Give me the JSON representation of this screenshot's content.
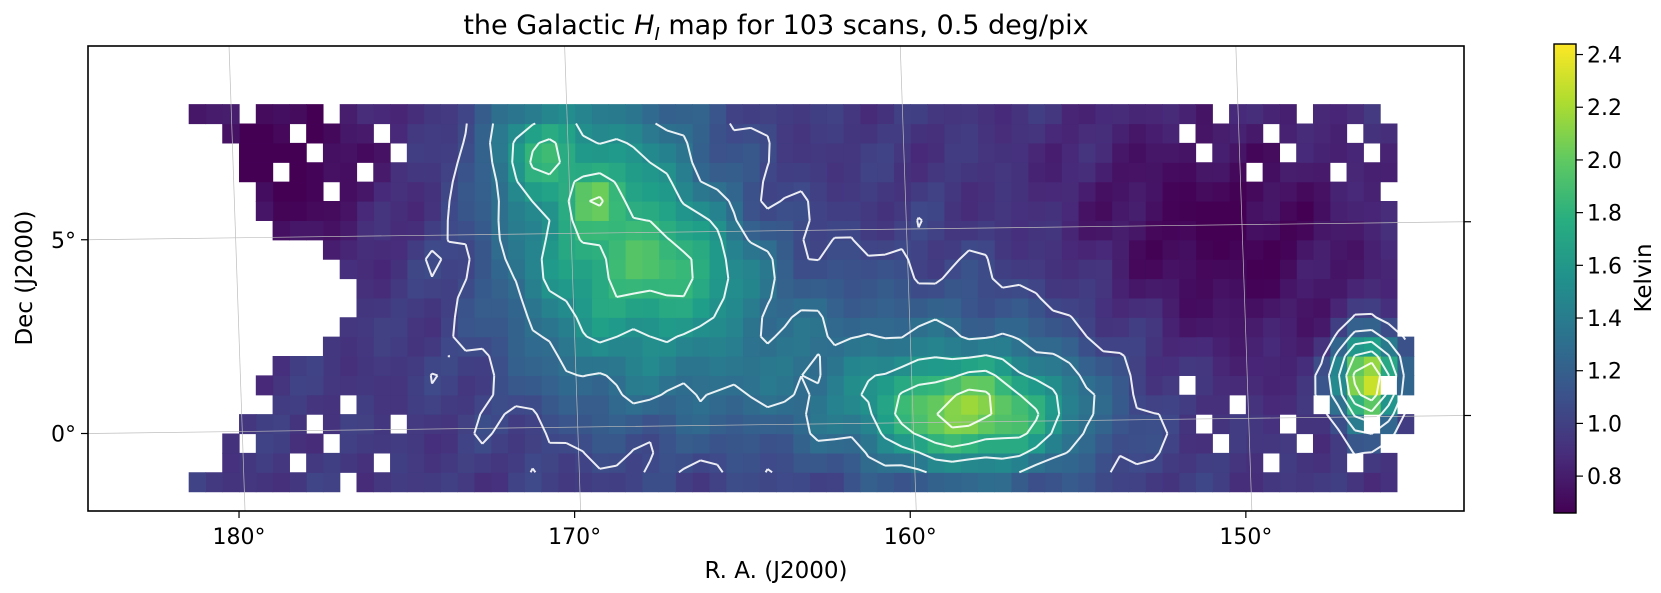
{
  "chart_data": {
    "type": "heatmap",
    "title_prefix": "the Galactic ",
    "title_symbol": "H",
    "title_subscript": "I",
    "title_suffix": " map for 103 scans, 0.5 deg/pix",
    "xlabel": "R. A. (J2000)",
    "ylabel": "Dec (J2000)",
    "x_ticks": [
      {
        "value": 180,
        "label": "180°"
      },
      {
        "value": 170,
        "label": "170°"
      },
      {
        "value": 160,
        "label": "160°"
      },
      {
        "value": 150,
        "label": "150°"
      }
    ],
    "y_ticks": [
      {
        "value": 5,
        "label": "5°"
      },
      {
        "value": 0,
        "label": "0°"
      }
    ],
    "xlim": [
      184.5,
      143.5
    ],
    "ylim": [
      -2,
      10
    ],
    "x_direction": "decreasing",
    "grid": true,
    "pixel_size_deg": 0.5,
    "colormap": "viridis",
    "colorbar": {
      "label": "Kelvin",
      "range": [
        0.66,
        2.44
      ],
      "ticks": [
        0.8,
        1.0,
        1.2,
        1.4,
        1.6,
        1.8,
        2.0,
        2.2,
        2.4
      ],
      "tick_labels": [
        "0.8",
        "1.0",
        "1.2",
        "1.4",
        "1.6",
        "1.8",
        "2.0",
        "2.2",
        "2.4"
      ]
    },
    "contours": {
      "color": "#ffffff",
      "levels": [
        1.05,
        1.3,
        1.55,
        1.8,
        2.05
      ]
    }
  }
}
